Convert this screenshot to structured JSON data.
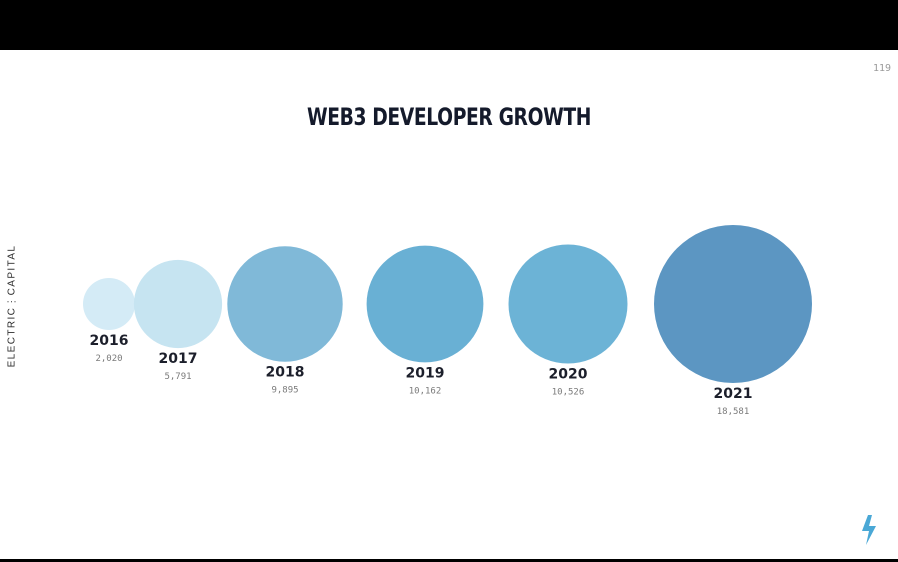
{
  "page_number": "119",
  "brand": "ELECTRIC⋮CAPITAL",
  "chart_data": {
    "type": "bubble",
    "title": "WEB3 DEVELOPER GROWTH",
    "xlabel": "",
    "ylabel": "",
    "categories": [
      "2016",
      "2017",
      "2018",
      "2019",
      "2020",
      "2021"
    ],
    "values": [
      2020,
      5791,
      9895,
      10162,
      10526,
      18581
    ],
    "value_labels": [
      "2,020",
      "5,791",
      "9,895",
      "10,162",
      "10,526",
      "18,581"
    ],
    "colors": [
      "#d4ebf6",
      "#c6e4f1",
      "#80b9d8",
      "#69b0d4",
      "#6cb3d6",
      "#5c96c2"
    ],
    "grid": false,
    "legend": "none"
  }
}
